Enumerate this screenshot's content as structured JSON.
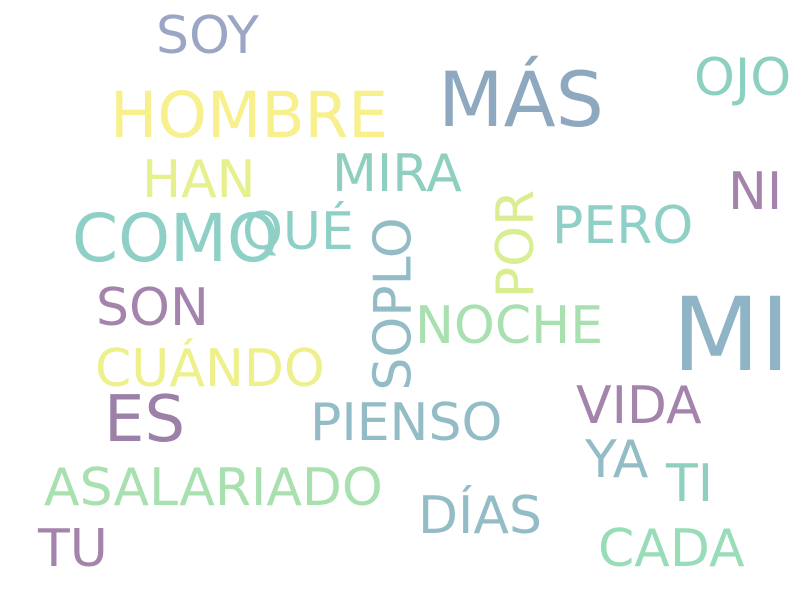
{
  "words": {
    "mas": {
      "text": "MÁS",
      "color": "#8ea8c0"
    },
    "mi": {
      "text": "MI",
      "color": "#8fb4c6"
    },
    "como": {
      "text": "COMO",
      "color": "#8ecfc6"
    },
    "hombre": {
      "text": "HOMBRE",
      "color": "#f7f08c"
    },
    "es": {
      "text": "ES",
      "color": "#9b80a8"
    },
    "asalariado": {
      "text": "ASALARIADO",
      "color": "#a8e0b0"
    },
    "cuando": {
      "text": "CUÁNDO",
      "color": "#eef08c"
    },
    "pienso": {
      "text": "PIENSO",
      "color": "#93bcc6"
    },
    "soy": {
      "text": "SOY",
      "color": "#9aa6c4"
    },
    "mira": {
      "text": "MIRA",
      "color": "#8ecfc0"
    },
    "soplo": {
      "text": "SOPLO",
      "color": "#93bcc6"
    },
    "noche": {
      "text": "NOCHE",
      "color": "#a8e0b0"
    },
    "vida": {
      "text": "VIDA",
      "color": "#a484ac"
    },
    "dias": {
      "text": "DÍAS",
      "color": "#93bcc6"
    },
    "cada": {
      "text": "CADA",
      "color": "#99dcb8"
    },
    "ojo": {
      "text": "OJO",
      "color": "#8ed0c0"
    },
    "que": {
      "text": "QUÉ",
      "color": "#8ecfc6"
    },
    "pero": {
      "text": "PERO",
      "color": "#8ecfc6"
    },
    "por": {
      "text": "POR",
      "color": "#d8ee90"
    },
    "han": {
      "text": "HAN",
      "color": "#e6f08c"
    },
    "son": {
      "text": "SON",
      "color": "#a484ac"
    },
    "tu": {
      "text": "TU",
      "color": "#a484ac"
    },
    "ni": {
      "text": "NI",
      "color": "#a484ac"
    },
    "ya": {
      "text": "YA",
      "color": "#93bcc6"
    },
    "ti": {
      "text": "TI",
      "color": "#8ecfc0"
    }
  }
}
